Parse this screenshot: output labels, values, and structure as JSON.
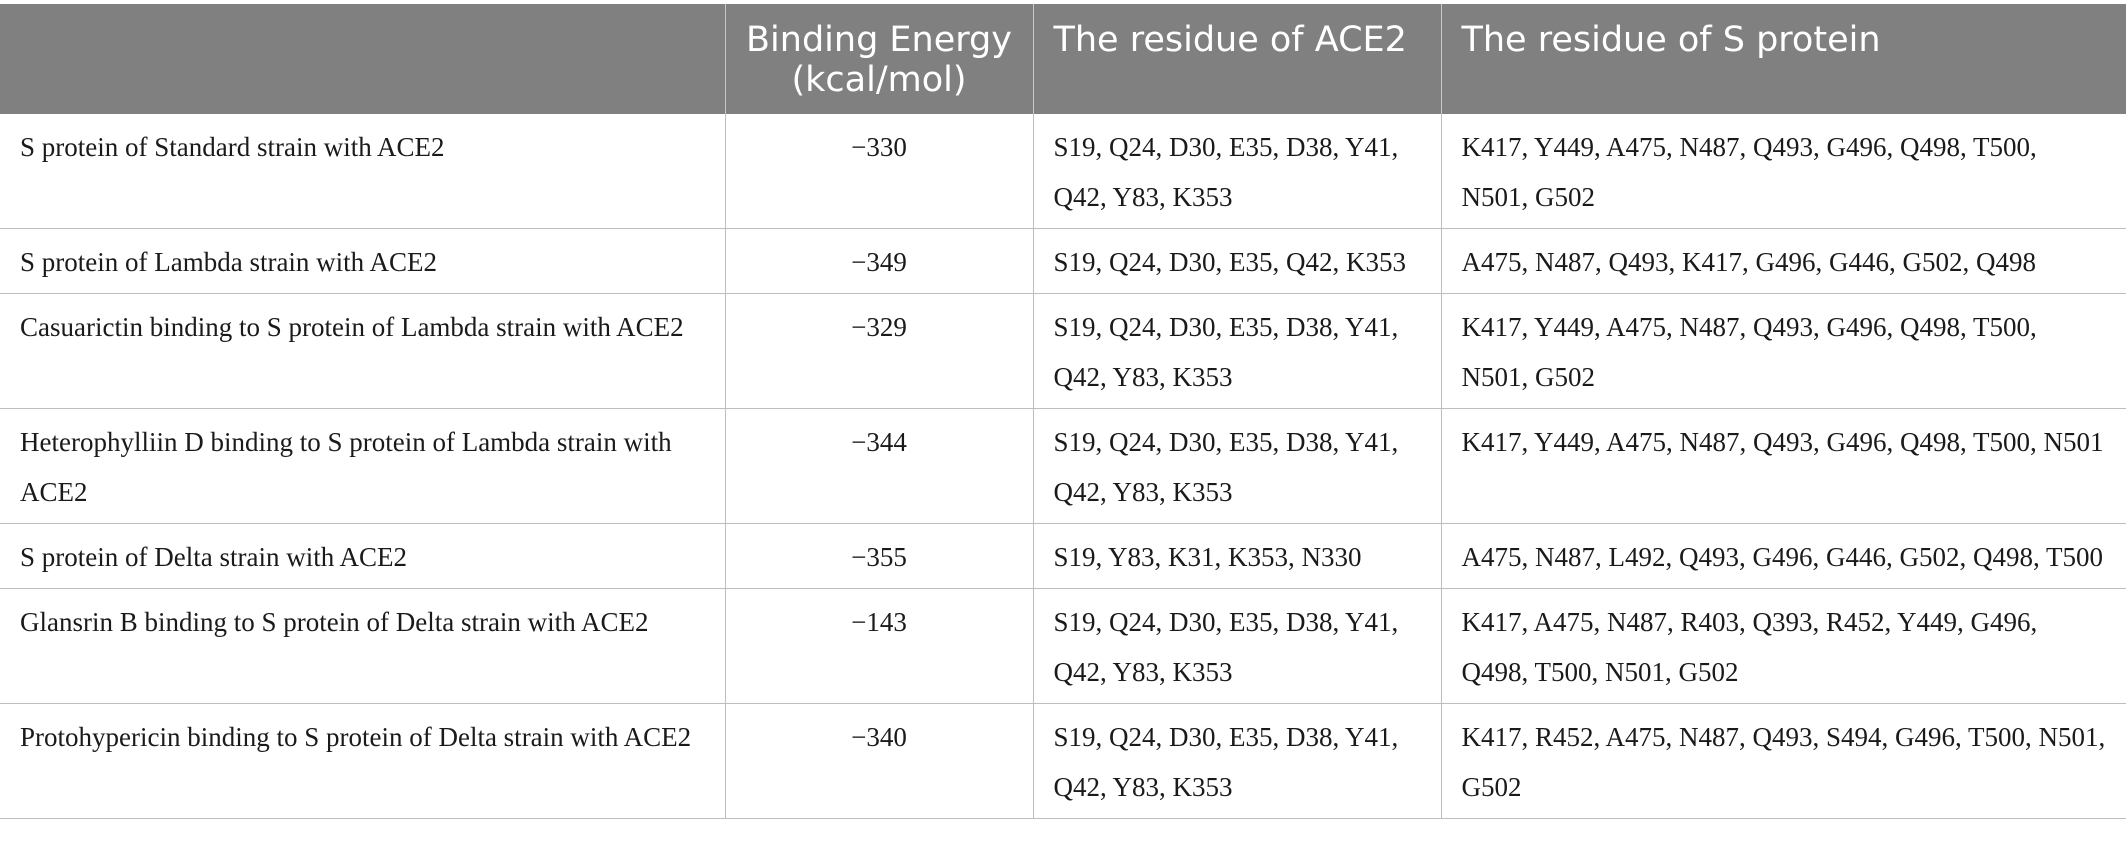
{
  "table": {
    "headers": [
      "",
      "Binding Energy (kcal/mol)",
      "The residue of ACE2",
      "The residue of S protein"
    ],
    "rows": [
      {
        "name": "S protein of Standard strain with ACE2",
        "energy": "−330",
        "ace2": "S19, Q24, D30, E35, D38, Y41, Q42, Y83, K353",
        "sprotein": "K417, Y449, A475, N487, Q493, G496, Q498, T500, N501, G502"
      },
      {
        "name": "S protein of Lambda strain with ACE2",
        "energy": "−349",
        "ace2": "S19, Q24, D30, E35, Q42, K353",
        "sprotein": "A475, N487, Q493, K417, G496, G446, G502, Q498"
      },
      {
        "name": "Casuarictin binding to S protein of Lambda strain with ACE2",
        "energy": "−329",
        "ace2": "S19, Q24, D30, E35, D38, Y41, Q42, Y83, K353",
        "sprotein": "K417, Y449, A475, N487, Q493, G496, Q498, T500, N501, G502"
      },
      {
        "name": "Heterophylliin D binding to S protein of Lambda strain with ACE2",
        "energy": "−344",
        "ace2": "S19, Q24, D30, E35, D38, Y41, Q42, Y83, K353",
        "sprotein": "K417, Y449, A475, N487, Q493, G496, Q498, T500, N501"
      },
      {
        "name": "S protein of Delta strain with ACE2",
        "energy": "−355",
        "ace2": "S19, Y83, K31, K353, N330",
        "sprotein": "A475, N487, L492, Q493, G496, G446, G502, Q498, T500"
      },
      {
        "name": "Glansrin B binding to S protein of Delta strain with ACE2",
        "energy": "−143",
        "ace2": "S19, Q24, D30, E35, D38, Y41, Q42, Y83, K353",
        "sprotein": "K417, A475, N487, R403, Q393, R452, Y449, G496, Q498, T500, N501, G502"
      },
      {
        "name": "Protohypericin binding to S protein of Delta strain with ACE2",
        "energy": "−340",
        "ace2": "S19, Q24, D30, E35, D38, Y41, Q42, Y83, K353",
        "sprotein": "K417, R452, A475, N487, Q493, S494, G496, T500, N501, G502"
      }
    ]
  }
}
